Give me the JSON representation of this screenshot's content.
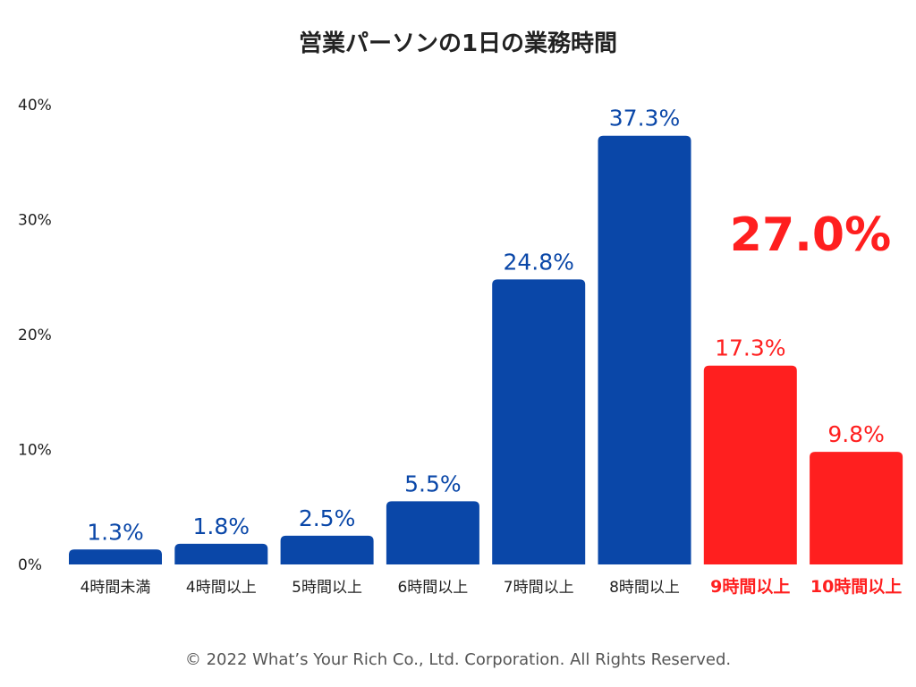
{
  "chart_data": {
    "type": "bar",
    "title": "営業パーソンの1日の業務時間",
    "categories": [
      "4時間未満",
      "4時間以上",
      "5時間以上",
      "6時間以上",
      "7時間以上",
      "8時間以上",
      "9時間以上",
      "10時間以上"
    ],
    "values": [
      1.3,
      1.8,
      2.5,
      5.5,
      24.8,
      37.3,
      17.3,
      9.8
    ],
    "value_labels": [
      "1.3%",
      "1.8%",
      "2.5%",
      "5.5%",
      "24.8%",
      "37.3%",
      "17.3%",
      "9.8%"
    ],
    "highlight": [
      false,
      false,
      false,
      false,
      false,
      false,
      true,
      true
    ],
    "yticks": [
      0,
      10,
      20,
      30,
      40
    ],
    "ytick_labels": [
      "0%",
      "10%",
      "20%",
      "30%",
      "40%"
    ],
    "ylim": [
      0,
      40
    ],
    "annotation": "27.0%",
    "colors": {
      "primary": "#0a47a8",
      "highlight": "#ff1f1f",
      "axis_text": "#222222"
    }
  },
  "footer": "© 2022 What’s Your Rich Co., Ltd. Corporation. All Rights Reserved."
}
